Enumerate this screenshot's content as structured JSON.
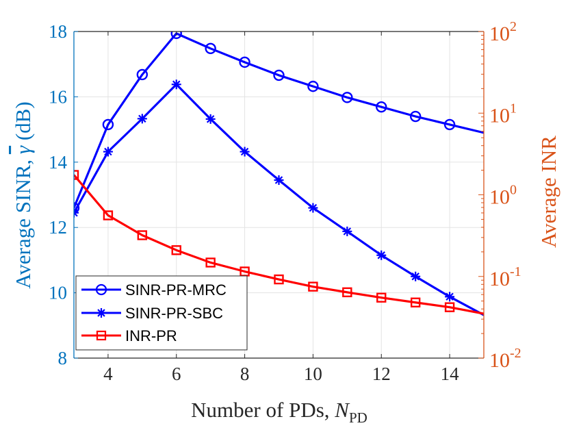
{
  "chart_data": {
    "type": "line",
    "title": "",
    "xlabel": "Number of PDs, ",
    "xlabel_symbol": "N",
    "xlabel_subscript": "PD",
    "ylabel_left_prefix": "Average SINR, ",
    "ylabel_left_symbol": "γ",
    "ylabel_left_suffix": " (dB)",
    "ylabel_right": "Average INR",
    "xlim": [
      3,
      15
    ],
    "ylim_left": [
      8,
      18
    ],
    "ylim_right": [
      0.01,
      100
    ],
    "yscale_right": "log",
    "grid": true,
    "x_ticks": [
      4,
      6,
      8,
      10,
      12,
      14
    ],
    "y_left_ticks": [
      8,
      10,
      12,
      14,
      16,
      18
    ],
    "y_right_ticks": [
      {
        "value": 0.01,
        "base": "10",
        "exp": "-2"
      },
      {
        "value": 0.1,
        "base": "10",
        "exp": "-1"
      },
      {
        "value": 1,
        "base": "10",
        "exp": "0"
      },
      {
        "value": 10,
        "base": "10",
        "exp": "1"
      },
      {
        "value": 100,
        "base": "10",
        "exp": "2"
      }
    ],
    "legend_position": "bottom-left",
    "series": [
      {
        "name": "SINR-PR-MRC",
        "axis": "left",
        "color": "#0000FF",
        "marker": "circle",
        "x": [
          3,
          4,
          5,
          6,
          7,
          8,
          9,
          10,
          11,
          12,
          13,
          14,
          15
        ],
        "y": [
          12.6,
          15.15,
          16.68,
          17.94,
          17.48,
          17.06,
          16.66,
          16.32,
          15.98,
          15.69,
          15.4,
          15.15,
          14.9
        ],
        "marker_x": [
          3,
          4,
          5,
          6,
          7,
          8,
          9,
          10,
          11,
          12,
          13,
          14
        ]
      },
      {
        "name": "SINR-PR-SBC",
        "axis": "left",
        "color": "#0000FF",
        "marker": "asterisk",
        "x": [
          3,
          4,
          5,
          6,
          7,
          8,
          9,
          10,
          11,
          12,
          13,
          14,
          15
        ],
        "y": [
          12.45,
          14.32,
          15.33,
          16.38,
          15.32,
          14.32,
          13.45,
          12.6,
          11.88,
          11.15,
          10.5,
          9.88,
          9.32
        ],
        "marker_x": [
          3,
          4,
          5,
          6,
          7,
          8,
          9,
          10,
          11,
          12,
          13,
          14
        ]
      },
      {
        "name": "INR-PR",
        "axis": "right",
        "color": "#FF0000",
        "marker": "square",
        "x": [
          3,
          4,
          5,
          6,
          7,
          8,
          9,
          10,
          11,
          12,
          13,
          14,
          15
        ],
        "y": [
          1.75,
          0.56,
          0.32,
          0.21,
          0.148,
          0.115,
          0.092,
          0.075,
          0.064,
          0.055,
          0.048,
          0.042,
          0.035
        ],
        "marker_x": [
          3,
          4,
          5,
          6,
          7,
          8,
          9,
          10,
          11,
          12,
          13,
          14
        ]
      }
    ]
  }
}
